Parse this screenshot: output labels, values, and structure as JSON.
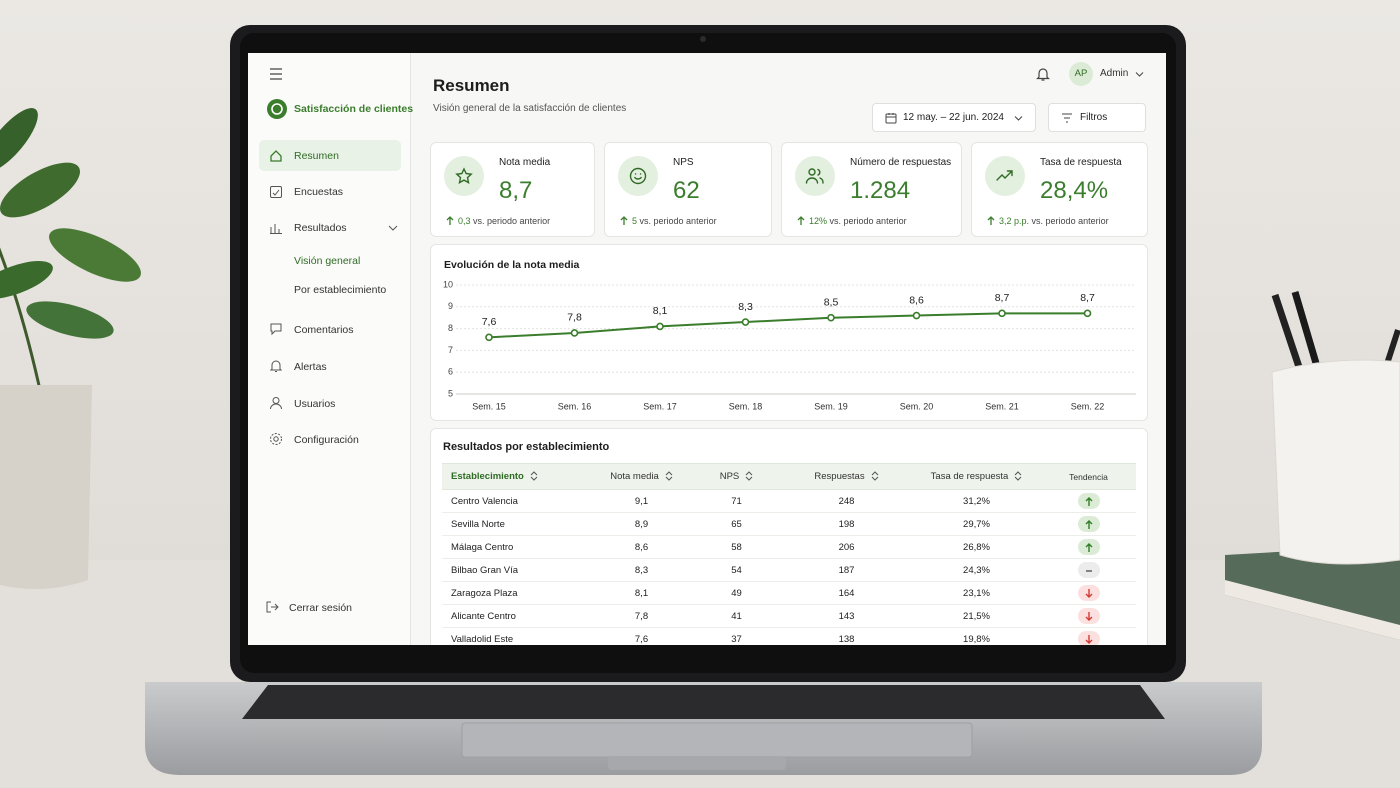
{
  "sidebar": {
    "app_name": "Satisfacción de clientes",
    "nav": [
      "Resumen",
      "Encuestas",
      "Resultados",
      "Visión general",
      "Por establecimiento",
      "Comentarios",
      "Alertas",
      "Usuarios",
      "Configuración"
    ],
    "logout": "Cerrar sesión"
  },
  "header": {
    "title": "Resumen",
    "subtitle": "Visión general de la satisfacción de clientes",
    "user_initials": "AP",
    "user": "Admin",
    "date_range": "12 may. – 22 jun. 2024",
    "filters": "Filtros"
  },
  "kpis": [
    {
      "label": "Nota media",
      "value": "8,7",
      "delta": "0,3",
      "delta_text": "vs. periodo anterior"
    },
    {
      "label": "NPS",
      "value": "62",
      "delta": "5",
      "delta_text": "vs. periodo anterior"
    },
    {
      "label": "Número de respuestas",
      "value": "1.284",
      "delta": "12%",
      "delta_text": "vs. periodo anterior"
    },
    {
      "label": "Tasa de respuesta",
      "value": "28,4%",
      "delta": "3,2 p.p.",
      "delta_text": "vs. periodo anterior"
    }
  ],
  "chart_data": {
    "type": "line",
    "title": "Evolución de la nota media",
    "categories": [
      "Sem. 15",
      "Sem. 16",
      "Sem. 17",
      "Sem. 18",
      "Sem. 19",
      "Sem. 20",
      "Sem. 21",
      "Sem. 22"
    ],
    "values": [
      7.6,
      7.8,
      8.1,
      8.3,
      8.5,
      8.6,
      8.7,
      8.7
    ],
    "value_labels": [
      "7,6",
      "7,8",
      "8,1",
      "8,3",
      "8,5",
      "8,6",
      "8,7",
      "8,7"
    ],
    "color": "#3a7d2c",
    "ylim": [
      5,
      10
    ],
    "yticks": [
      5,
      6,
      7,
      8,
      9,
      10
    ],
    "grid": true
  },
  "table": {
    "title": "Resultados por establecimiento",
    "columns": [
      "Establecimiento",
      "Nota media",
      "NPS",
      "Respuestas",
      "Tasa de respuesta",
      "Tendencia"
    ],
    "rows": [
      {
        "cells": [
          "Centro Valencia",
          "9,1",
          "71",
          "248",
          "31,2%"
        ],
        "trend": "up"
      },
      {
        "cells": [
          "Sevilla Norte",
          "8,9",
          "65",
          "198",
          "29,7%"
        ],
        "trend": "up"
      },
      {
        "cells": [
          "Málaga Centro",
          "8,6",
          "58",
          "206",
          "26,8%"
        ],
        "trend": "up"
      },
      {
        "cells": [
          "Bilbao Gran Vía",
          "8,3",
          "54",
          "187",
          "24,3%"
        ],
        "trend": "flat"
      },
      {
        "cells": [
          "Zaragoza Plaza",
          "8,1",
          "49",
          "164",
          "23,1%"
        ],
        "trend": "down"
      },
      {
        "cells": [
          "Alicante Centro",
          "7,8",
          "41",
          "143",
          "21,5%"
        ],
        "trend": "down"
      },
      {
        "cells": [
          "Valladolid Este",
          "7,6",
          "37",
          "138",
          "19,8%"
        ],
        "trend": "down"
      }
    ]
  }
}
